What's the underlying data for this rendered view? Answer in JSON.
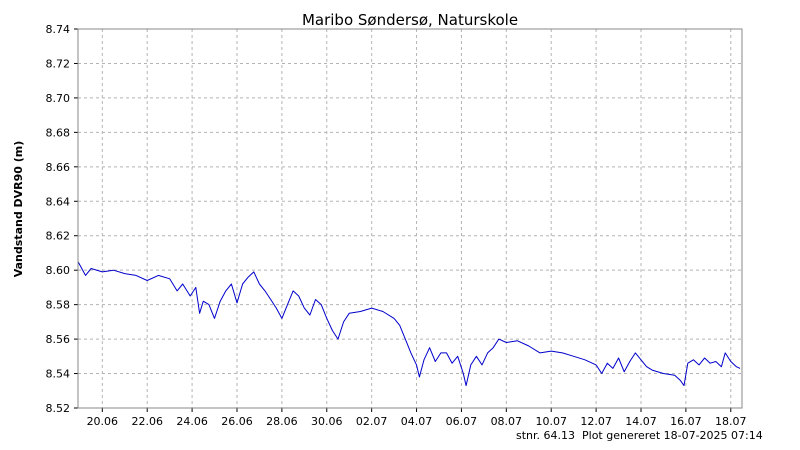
{
  "chart_data": {
    "type": "line",
    "title": "Maribo Søndersø, Naturskole",
    "ylabel": "Vandstand DVR90 (m)",
    "xlabel": "",
    "ylim": [
      8.52,
      8.74
    ],
    "xlim": [
      "2025-06-18T22:00",
      "2025-07-18T12:00"
    ],
    "y_ticks": [
      "8.52",
      "8.54",
      "8.56",
      "8.58",
      "8.60",
      "8.62",
      "8.64",
      "8.66",
      "8.68",
      "8.70",
      "8.72",
      "8.74"
    ],
    "x_ticks": [
      {
        "label": "20.06",
        "date": "2025-06-20"
      },
      {
        "label": "22.06",
        "date": "2025-06-22"
      },
      {
        "label": "24.06",
        "date": "2025-06-24"
      },
      {
        "label": "26.06",
        "date": "2025-06-26"
      },
      {
        "label": "28.06",
        "date": "2025-06-28"
      },
      {
        "label": "30.06",
        "date": "2025-06-30"
      },
      {
        "label": "02.07",
        "date": "2025-07-02"
      },
      {
        "label": "04.07",
        "date": "2025-07-04"
      },
      {
        "label": "06.07",
        "date": "2025-07-06"
      },
      {
        "label": "08.07",
        "date": "2025-07-08"
      },
      {
        "label": "10.07",
        "date": "2025-07-10"
      },
      {
        "label": "12.07",
        "date": "2025-07-12"
      },
      {
        "label": "14.07",
        "date": "2025-07-14"
      },
      {
        "label": "16.07",
        "date": "2025-07-16"
      },
      {
        "label": "18.07",
        "date": "2025-07-18"
      }
    ],
    "grid": true,
    "series": [
      {
        "color": "#0000cc",
        "points": [
          [
            "2025-06-18T22:00",
            8.605
          ],
          [
            "2025-06-19T06:00",
            8.597
          ],
          [
            "2025-06-19T12:00",
            8.601
          ],
          [
            "2025-06-20T00:00",
            8.599
          ],
          [
            "2025-06-20T12:00",
            8.6
          ],
          [
            "2025-06-21T00:00",
            8.598
          ],
          [
            "2025-06-21T12:00",
            8.597
          ],
          [
            "2025-06-22T00:00",
            8.594
          ],
          [
            "2025-06-22T12:00",
            8.597
          ],
          [
            "2025-06-23T00:00",
            8.595
          ],
          [
            "2025-06-23T08:00",
            8.588
          ],
          [
            "2025-06-23T14:00",
            8.592
          ],
          [
            "2025-06-23T22:00",
            8.585
          ],
          [
            "2025-06-24T04:00",
            8.59
          ],
          [
            "2025-06-24T08:00",
            8.575
          ],
          [
            "2025-06-24T12:00",
            8.582
          ],
          [
            "2025-06-24T18:00",
            8.58
          ],
          [
            "2025-06-25T00:00",
            8.572
          ],
          [
            "2025-06-25T06:00",
            8.582
          ],
          [
            "2025-06-25T12:00",
            8.588
          ],
          [
            "2025-06-25T18:00",
            8.592
          ],
          [
            "2025-06-26T00:00",
            8.581
          ],
          [
            "2025-06-26T06:00",
            8.592
          ],
          [
            "2025-06-26T12:00",
            8.596
          ],
          [
            "2025-06-26T18:00",
            8.599
          ],
          [
            "2025-06-27T00:00",
            8.592
          ],
          [
            "2025-06-27T06:00",
            8.588
          ],
          [
            "2025-06-27T12:00",
            8.583
          ],
          [
            "2025-06-27T18:00",
            8.578
          ],
          [
            "2025-06-28T00:00",
            8.572
          ],
          [
            "2025-06-28T06:00",
            8.58
          ],
          [
            "2025-06-28T12:00",
            8.588
          ],
          [
            "2025-06-28T18:00",
            8.585
          ],
          [
            "2025-06-29T00:00",
            8.578
          ],
          [
            "2025-06-29T06:00",
            8.574
          ],
          [
            "2025-06-29T12:00",
            8.583
          ],
          [
            "2025-06-29T18:00",
            8.58
          ],
          [
            "2025-06-30T00:00",
            8.572
          ],
          [
            "2025-06-30T06:00",
            8.565
          ],
          [
            "2025-06-30T12:00",
            8.56
          ],
          [
            "2025-06-30T18:00",
            8.57
          ],
          [
            "2025-07-01T00:00",
            8.575
          ],
          [
            "2025-07-01T12:00",
            8.576
          ],
          [
            "2025-07-02T00:00",
            8.578
          ],
          [
            "2025-07-02T12:00",
            8.576
          ],
          [
            "2025-07-03T00:00",
            8.572
          ],
          [
            "2025-07-03T06:00",
            8.568
          ],
          [
            "2025-07-03T12:00",
            8.56
          ],
          [
            "2025-07-03T18:00",
            8.552
          ],
          [
            "2025-07-04T00:00",
            8.545
          ],
          [
            "2025-07-04T03:00",
            8.538
          ],
          [
            "2025-07-04T08:00",
            8.548
          ],
          [
            "2025-07-04T14:00",
            8.555
          ],
          [
            "2025-07-04T20:00",
            8.547
          ],
          [
            "2025-07-05T02:00",
            8.552
          ],
          [
            "2025-07-05T08:00",
            8.552
          ],
          [
            "2025-07-05T14:00",
            8.546
          ],
          [
            "2025-07-05T20:00",
            8.55
          ],
          [
            "2025-07-06T02:00",
            8.54
          ],
          [
            "2025-07-06T05:00",
            8.533
          ],
          [
            "2025-07-06T10:00",
            8.545
          ],
          [
            "2025-07-06T16:00",
            8.55
          ],
          [
            "2025-07-06T22:00",
            8.545
          ],
          [
            "2025-07-07T04:00",
            8.552
          ],
          [
            "2025-07-07T10:00",
            8.555
          ],
          [
            "2025-07-07T16:00",
            8.56
          ],
          [
            "2025-07-08T00:00",
            8.558
          ],
          [
            "2025-07-08T12:00",
            8.559
          ],
          [
            "2025-07-09T00:00",
            8.556
          ],
          [
            "2025-07-09T12:00",
            8.552
          ],
          [
            "2025-07-10T00:00",
            8.553
          ],
          [
            "2025-07-10T12:00",
            8.552
          ],
          [
            "2025-07-11T00:00",
            8.55
          ],
          [
            "2025-07-11T12:00",
            8.548
          ],
          [
            "2025-07-12T00:00",
            8.545
          ],
          [
            "2025-07-12T06:00",
            8.54
          ],
          [
            "2025-07-12T12:00",
            8.546
          ],
          [
            "2025-07-12T18:00",
            8.543
          ],
          [
            "2025-07-13T00:00",
            8.549
          ],
          [
            "2025-07-13T06:00",
            8.541
          ],
          [
            "2025-07-13T12:00",
            8.547
          ],
          [
            "2025-07-13T18:00",
            8.552
          ],
          [
            "2025-07-14T00:00",
            8.548
          ],
          [
            "2025-07-14T06:00",
            8.544
          ],
          [
            "2025-07-14T12:00",
            8.542
          ],
          [
            "2025-07-15T00:00",
            8.54
          ],
          [
            "2025-07-15T12:00",
            8.539
          ],
          [
            "2025-07-15T18:00",
            8.536
          ],
          [
            "2025-07-15T22:00",
            8.533
          ],
          [
            "2025-07-16T02:00",
            8.546
          ],
          [
            "2025-07-16T08:00",
            8.548
          ],
          [
            "2025-07-16T14:00",
            8.545
          ],
          [
            "2025-07-16T20:00",
            8.549
          ],
          [
            "2025-07-17T02:00",
            8.546
          ],
          [
            "2025-07-17T08:00",
            8.547
          ],
          [
            "2025-07-17T14:00",
            8.544
          ],
          [
            "2025-07-17T18:00",
            8.552
          ],
          [
            "2025-07-18T00:00",
            8.547
          ],
          [
            "2025-07-18T06:00",
            8.544
          ],
          [
            "2025-07-18T10:00",
            8.543
          ]
        ]
      }
    ],
    "footer": {
      "station": "stnr. 64.13",
      "generated": "Plot genereret 18-07-2025 07:14"
    }
  }
}
